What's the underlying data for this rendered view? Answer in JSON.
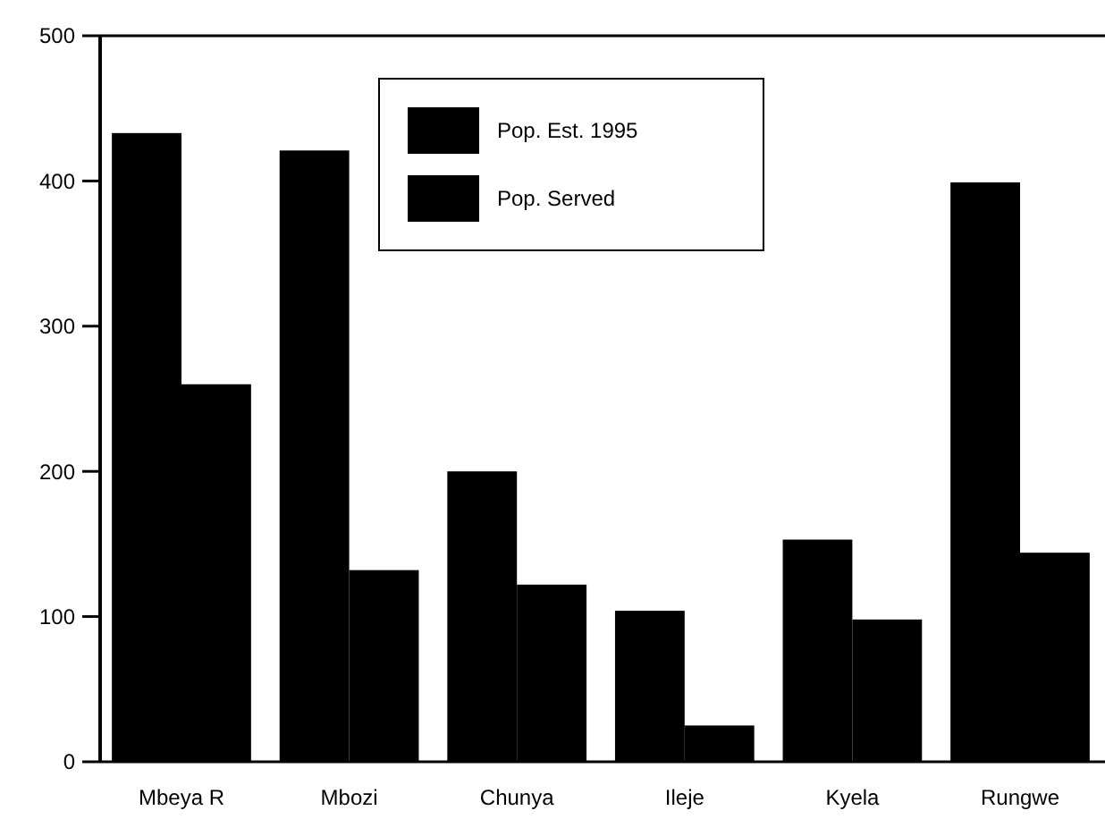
{
  "chart_data": {
    "type": "bar",
    "categories": [
      "Mbeya R",
      "Mbozi",
      "Chunya",
      "Ileje",
      "Kyela",
      "Rungwe"
    ],
    "series": [
      {
        "name": "Pop. Est. 1995",
        "color": "#000000",
        "values": [
          433,
          421,
          200,
          104,
          153,
          399
        ]
      },
      {
        "name": "Pop. Served",
        "color": "#000000",
        "values": [
          260,
          132,
          122,
          25,
          98,
          144
        ]
      }
    ],
    "ylim": [
      0,
      500
    ],
    "yticks": [
      0,
      100,
      200,
      300,
      400,
      500
    ],
    "grid": false,
    "legend": "top"
  }
}
